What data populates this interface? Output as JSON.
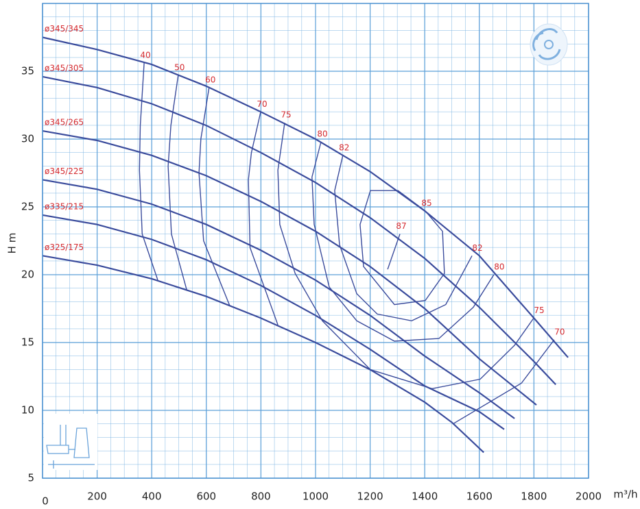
{
  "chart_data": {
    "type": "line",
    "x_label": "m³/h",
    "y_label": "H m",
    "xlim": [
      0,
      2000
    ],
    "ylim": [
      5,
      40
    ],
    "xticks": [
      0,
      200,
      400,
      600,
      800,
      1000,
      1200,
      1400,
      1600,
      1800,
      2000
    ],
    "yticks": [
      5,
      10,
      15,
      20,
      25,
      30,
      35
    ],
    "grid": true,
    "grid_color": "#5b9fd8",
    "label_color": "#d42a2f",
    "series": [
      {
        "name": "ø345/345",
        "color": "#3a4b9c",
        "x": [
          0,
          200,
          400,
          600,
          800,
          1000,
          1200,
          1400,
          1600,
          1800,
          1925
        ],
        "values": [
          37.5,
          36.6,
          35.5,
          33.9,
          32.0,
          30.0,
          27.6,
          24.7,
          21.4,
          16.8,
          13.9
        ]
      },
      {
        "name": "ø345/305",
        "color": "#3a4b9c",
        "x": [
          0,
          200,
          400,
          600,
          800,
          1000,
          1200,
          1400,
          1600,
          1800,
          1880
        ],
        "values": [
          34.6,
          33.8,
          32.6,
          31.0,
          29.0,
          26.8,
          24.2,
          21.2,
          17.6,
          13.6,
          11.9
        ]
      },
      {
        "name": "ø345/265",
        "color": "#3a4b9c",
        "x": [
          0,
          200,
          400,
          600,
          800,
          1000,
          1200,
          1400,
          1600,
          1809
        ],
        "values": [
          30.6,
          29.9,
          28.8,
          27.3,
          25.4,
          23.2,
          20.6,
          17.5,
          13.8,
          10.4
        ]
      },
      {
        "name": "ø345/225",
        "color": "#3a4b9c",
        "x": [
          0,
          200,
          400,
          600,
          800,
          1000,
          1200,
          1400,
          1600,
          1729
        ],
        "values": [
          27.0,
          26.3,
          25.2,
          23.7,
          21.8,
          19.6,
          17.0,
          14.0,
          11.3,
          9.4
        ]
      },
      {
        "name": "ø335/215",
        "color": "#3a4b9c",
        "x": [
          0,
          200,
          400,
          600,
          800,
          1000,
          1200,
          1400,
          1600,
          1691
        ],
        "values": [
          24.4,
          23.7,
          22.6,
          21.1,
          19.2,
          17.0,
          14.5,
          11.8,
          9.9,
          8.6
        ]
      },
      {
        "name": "ø325/175",
        "color": "#3a4b9c",
        "x": [
          0,
          200,
          400,
          600,
          800,
          1000,
          1200,
          1400,
          1500,
          1616
        ],
        "values": [
          21.4,
          20.7,
          19.7,
          18.4,
          16.8,
          15.0,
          13.0,
          10.6,
          9.1,
          6.9
        ]
      }
    ],
    "efficiency_curves": [
      {
        "label": "40",
        "color": "#3a4b9c",
        "x": [
          372,
          358,
          355,
          365,
          422
        ],
        "values": [
          35.6,
          31.0,
          27.7,
          23.0,
          19.6
        ]
      },
      {
        "label": "50",
        "color": "#3a4b9c",
        "x": [
          497,
          470,
          460,
          472,
          528
        ],
        "values": [
          34.7,
          31.0,
          28.0,
          23.0,
          18.9
        ]
      },
      {
        "label": "60",
        "color": "#3a4b9c",
        "x": [
          610,
          580,
          573,
          590,
          686
        ],
        "values": [
          33.8,
          30.0,
          27.5,
          22.5,
          17.7
        ]
      },
      {
        "label": "70",
        "color": "#3a4b9c",
        "x": [
          799,
          765,
          754,
          760,
          862,
          null,
          1503,
          1754,
          1874
        ],
        "values": [
          32.0,
          29.0,
          27.0,
          22.0,
          16.3,
          null,
          9.0,
          12.0,
          15.2
        ]
      },
      {
        "label": "75",
        "color": "#3a4b9c",
        "x": [
          887,
          862,
          869,
          925,
          1025,
          1201,
          1427,
          1603,
          1729,
          1799
        ],
        "values": [
          31.2,
          27.7,
          23.7,
          20.1,
          16.6,
          13.0,
          11.6,
          12.3,
          14.8,
          16.8
        ]
      },
      {
        "label": "80",
        "color": "#3a4b9c",
        "x": [
          1020,
          987,
          995,
          1050,
          1151,
          1289,
          1452,
          1578,
          1653
        ],
        "values": [
          29.8,
          27.2,
          23.7,
          19.1,
          16.6,
          15.1,
          15.3,
          17.6,
          20.0
        ]
      },
      {
        "label": "82",
        "color": "#3a4b9c",
        "x": [
          1100,
          1070,
          1088,
          1151,
          1226,
          1352,
          1477,
          1573
        ],
        "values": [
          28.8,
          26.2,
          22.2,
          18.6,
          17.1,
          16.6,
          17.8,
          21.4
        ]
      },
      {
        "label": "85",
        "color": "#3a4b9c",
        "x": [
          1402,
          1302,
          1201,
          1163,
          1176,
          1289,
          1402,
          1472,
          1465,
          1402
        ],
        "values": [
          24.7,
          26.2,
          26.2,
          23.7,
          20.6,
          17.8,
          18.1,
          20.1,
          23.2,
          24.7
        ]
      },
      {
        "label": "87",
        "color": "#3a4b9c",
        "x": [
          1309,
          1264
        ],
        "values": [
          23.0,
          20.4
        ]
      }
    ]
  }
}
